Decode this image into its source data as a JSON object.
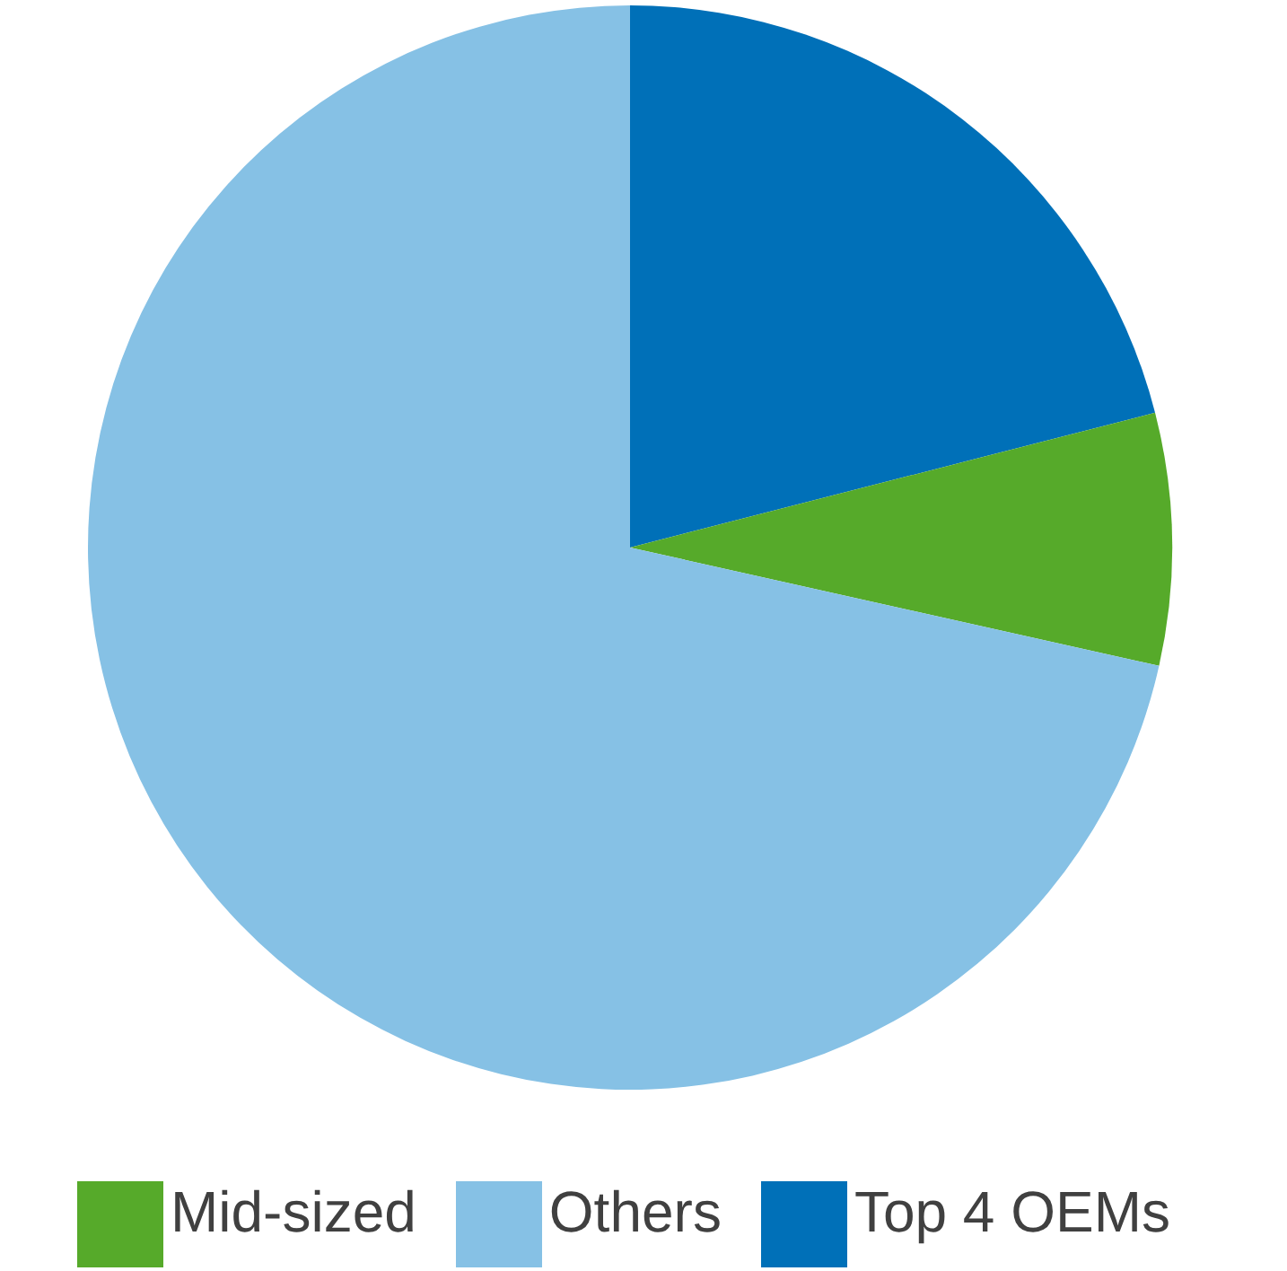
{
  "chart_data": {
    "type": "pie",
    "categories": [
      "Top 4 OEMs",
      "Mid-sized",
      "Others"
    ],
    "values": [
      21,
      7.5,
      71.5
    ],
    "colors": [
      "#0070b8",
      "#56aa2a",
      "#86c1e5"
    ],
    "legend": "bottom"
  }
}
